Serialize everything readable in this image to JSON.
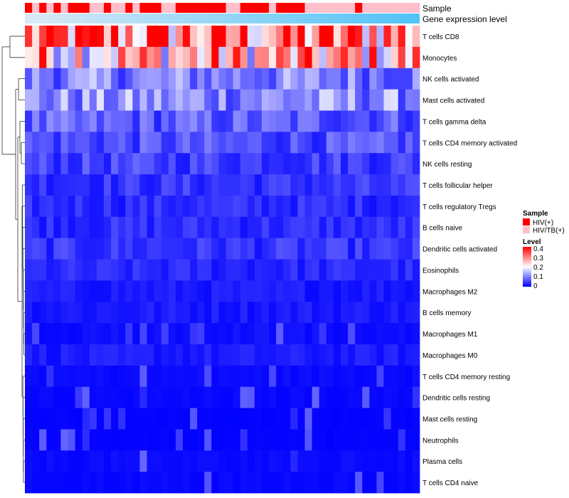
{
  "chart_data": {
    "type": "heatmap",
    "title": "",
    "annotations": {
      "sample_label": "Sample",
      "gene_label": "Gene expression level"
    },
    "sample_groups": [
      "HIV(+)",
      "HIV/TB(+)",
      "HIV(+)",
      "HIV/TB(+)",
      "HIV(+)",
      "HIV/TB(+)",
      "HIV(+)",
      "HIV(+)",
      "HIV(+)",
      "HIV/TB(+)",
      "HIV/TB(+)",
      "HIV(+)",
      "HIV/TB(+)",
      "HIV/TB(+)",
      "HIV(+)",
      "HIV/TB(+)",
      "HIV(+)",
      "HIV(+)",
      "HIV(+)",
      "HIV/TB(+)",
      "HIV/TB(+)",
      "HIV(+)",
      "HIV(+)",
      "HIV(+)",
      "HIV(+)",
      "HIV(+)",
      "HIV(+)",
      "HIV(+)",
      "HIV/TB(+)",
      "HIV/TB(+)",
      "HIV(+)",
      "HIV(+)",
      "HIV(+)",
      "HIV(+)",
      "HIV/TB(+)",
      "HIV(+)",
      "HIV(+)",
      "HIV(+)",
      "HIV(+)",
      "HIV/TB(+)",
      "HIV/TB(+)",
      "HIV/TB(+)",
      "HIV/TB(+)",
      "HIV/TB(+)",
      "HIV/TB(+)",
      "HIV/TB(+)",
      "HIV(+)",
      "HIV/TB(+)",
      "HIV/TB(+)",
      "HIV/TB(+)",
      "HIV/TB(+)",
      "HIV/TB(+)",
      "HIV/TB(+)",
      "HIV/TB(+)",
      "HIV/TB(+)"
    ],
    "rows": [
      "T cells CD8",
      "Monocytes",
      "NK cells activated",
      "Mast cells activated",
      "T cells gamma delta",
      "T cells CD4 memory activated",
      "NK cells resting",
      "T cells follicular helper",
      "T cells regulatory  Tregs",
      "B cells naive",
      "Dendritic cells activated",
      "Eosinophils",
      "Macrophages M2",
      "B cells memory",
      "Macrophages M1",
      "Macrophages M0",
      "T cells CD4 memory resting",
      "Dendritic cells resting",
      "Mast cells resting",
      "Neutrophils",
      "Plasma cells",
      "T cells CD4 naive"
    ],
    "row_means": [
      0.3,
      0.25,
      0.1,
      0.11,
      0.07,
      0.06,
      0.05,
      0.04,
      0.035,
      0.035,
      0.04,
      0.03,
      0.02,
      0.02,
      0.012,
      0.02,
      0.008,
      0.006,
      0.003,
      0.003,
      0.008,
      0.006
    ],
    "n_columns": 55,
    "legend": {
      "sample_title": "Sample",
      "sample_entries": [
        {
          "label": "HIV(+)",
          "color": "#ff0000"
        },
        {
          "label": "HIV/TB(+)",
          "color": "#ffc0cb"
        }
      ],
      "level_title": "Level",
      "level_ticks": [
        "0.4",
        "0.3",
        "0.2",
        "0.1",
        "0"
      ],
      "level_range": [
        0,
        0.4
      ]
    },
    "colors": {
      "low": "#0000ff",
      "mid": "#ffffff",
      "high": "#ff0000",
      "gene_bar_start": "#d8e8f5",
      "gene_bar_end": "#4fc3f7"
    }
  }
}
